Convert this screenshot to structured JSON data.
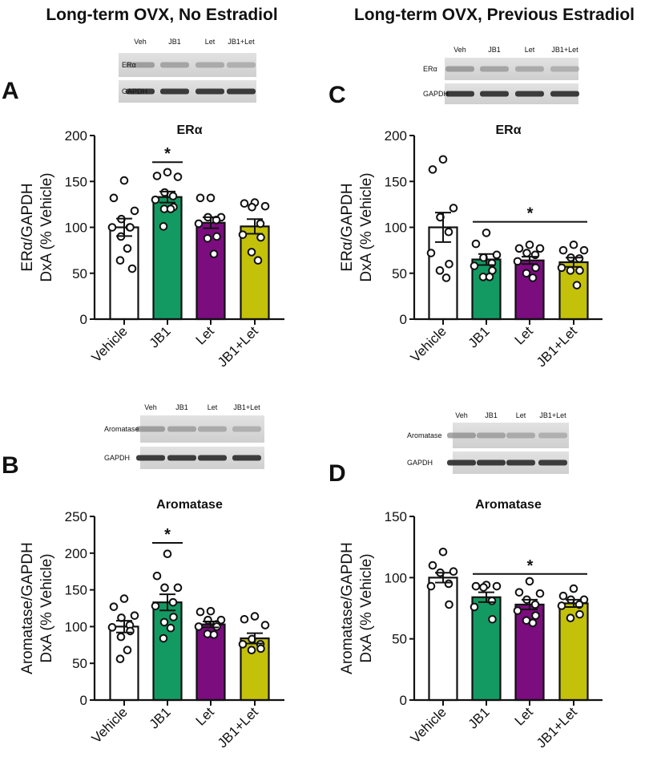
{
  "titles": {
    "left": "Long-term OVX, No Estradiol",
    "right": "Long-term OVX, Previous Estradiol"
  },
  "panel_letters": [
    "A",
    "B",
    "C",
    "D"
  ],
  "blots": {
    "A": {
      "lanes": [
        "Veh",
        "JB1",
        "Let",
        "JB1+Let"
      ],
      "rows": [
        "ERα",
        "GAPDH"
      ]
    },
    "C": {
      "lanes": [
        "Veh",
        "JB1",
        "Let",
        "JB1+Let"
      ],
      "rows": [
        "ERα",
        "GAPDH"
      ]
    },
    "B": {
      "lanes": [
        "Veh",
        "JB1",
        "Let",
        "JB1+Let"
      ],
      "rows": [
        "Aromatase",
        "GAPDH"
      ]
    },
    "D": {
      "lanes": [
        "Veh",
        "JB1",
        "Let",
        "JB1+Let"
      ],
      "rows": [
        "Aromatase",
        "GAPDH"
      ]
    }
  },
  "colors": {
    "Vehicle": "#ffffff",
    "JB1": "#139a62",
    "Let": "#7b0d7f",
    "JB1+Let": "#c4c10a"
  },
  "chart_data": [
    {
      "panel": "A",
      "type": "bar",
      "title": "ERα",
      "ylabel": [
        "ERα/GAPDH",
        "DxA (% Vehicle)"
      ],
      "xlabel": "",
      "ylim": [
        0,
        200
      ],
      "yticks": [
        "0",
        "50",
        "100",
        "150",
        "200"
      ],
      "categories": [
        "Vehicle",
        "JB1",
        "Let",
        "JB1+Let"
      ],
      "values": [
        100,
        133,
        105,
        101
      ],
      "sem": [
        9.5,
        6,
        6,
        8
      ],
      "points": [
        [
          151,
          132,
          118,
          109,
          100,
          100,
          100,
          90,
          77,
          64,
          55
        ],
        [
          160,
          156,
          155,
          138,
          134,
          130,
          122,
          120,
          120,
          101
        ],
        [
          132,
          132,
          111,
          111,
          108,
          104,
          90,
          88,
          71
        ],
        [
          127,
          126,
          123,
          122,
          104,
          92,
          89,
          73,
          64
        ]
      ],
      "significance": {
        "label": "*",
        "from": 1,
        "to": 1,
        "y": 171
      }
    },
    {
      "panel": "B",
      "type": "bar",
      "title": "Aromatase",
      "ylabel": [
        "Aromatase/GAPDH",
        "DxA (% Vehicle)"
      ],
      "xlabel": "",
      "ylim": [
        0,
        250
      ],
      "yticks": [
        "0",
        "50",
        "100",
        "150",
        "200",
        "250"
      ],
      "categories": [
        "Vehicle",
        "JB1",
        "Let",
        "JB1+Let"
      ],
      "values": [
        100,
        133,
        103,
        84
      ],
      "sem": [
        8,
        11,
        4,
        7
      ],
      "points": [
        [
          138,
          127,
          115,
          112,
          102,
          99,
          94,
          86,
          68,
          56
        ],
        [
          199,
          169,
          153,
          153,
          133,
          128,
          113,
          106,
          98,
          84
        ],
        [
          121,
          120,
          109,
          109,
          103,
          100,
          100,
          90,
          89
        ],
        [
          114,
          110,
          102,
          83,
          76,
          76,
          70,
          68
        ]
      ],
      "significance": {
        "label": "*",
        "from": 1,
        "to": 1,
        "y": 214
      }
    },
    {
      "panel": "C",
      "type": "bar",
      "title": "ERα",
      "ylabel": [
        "ERα/GAPDH",
        "DxA (% Vehicle)"
      ],
      "xlabel": "",
      "ylim": [
        0,
        200
      ],
      "yticks": [
        "0",
        "50",
        "100",
        "150",
        "200"
      ],
      "categories": [
        "Vehicle",
        "JB1",
        "Let",
        "JB1+Let"
      ],
      "values": [
        100,
        65,
        64,
        62
      ],
      "sem": [
        16,
        6,
        4,
        5
      ],
      "points": [
        [
          174,
          163,
          121,
          111,
          95,
          72,
          60,
          53,
          45
        ],
        [
          94,
          82,
          70,
          67,
          61,
          58,
          53,
          46,
          46
        ],
        [
          81,
          77,
          77,
          72,
          70,
          63,
          56,
          50,
          45
        ],
        [
          81,
          75,
          75,
          67,
          66,
          56,
          53,
          53,
          37
        ]
      ],
      "significance": {
        "label": "*",
        "from": 1,
        "to": 3,
        "y": 106
      }
    },
    {
      "panel": "D",
      "type": "bar",
      "title": "Aromatase",
      "ylabel": [
        "Aromatase/GAPDH",
        "DxA (% Vehicle)"
      ],
      "xlabel": "",
      "ylim": [
        0,
        150
      ],
      "yticks": [
        "0",
        "50",
        "100",
        "150"
      ],
      "categories": [
        "Vehicle",
        "JB1",
        "Let",
        "JB1+Let"
      ],
      "values": [
        100,
        84,
        78,
        79
      ],
      "sem": [
        4,
        4,
        4,
        3
      ],
      "points": [
        [
          121,
          110,
          105,
          104,
          95,
          93,
          78
        ],
        [
          94,
          93,
          93,
          92,
          81,
          76,
          66
        ],
        [
          97,
          88,
          87,
          82,
          78,
          73,
          69,
          65,
          63
        ],
        [
          91,
          85,
          82,
          82,
          78,
          77,
          70,
          67
        ]
      ],
      "significance": {
        "label": "*",
        "from": 1,
        "to": 3,
        "y": 103
      }
    }
  ]
}
